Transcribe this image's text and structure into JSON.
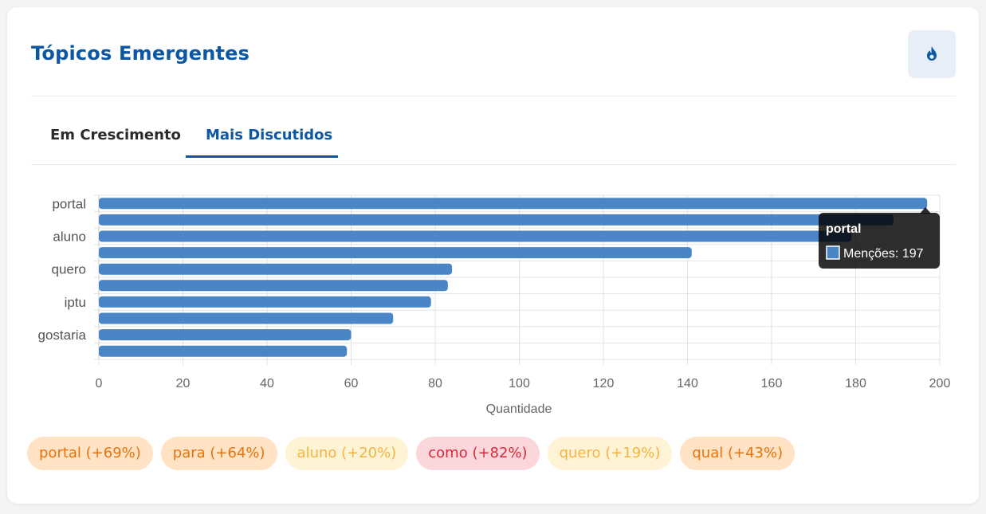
{
  "header": {
    "title": "Tópicos Emergentes",
    "icon": "fire-icon"
  },
  "tabs": [
    {
      "label": "Em Crescimento",
      "active": false
    },
    {
      "label": "Mais Discutidos",
      "active": true
    }
  ],
  "colors": {
    "accent": "#0b57a4",
    "bar": "#4a86c6"
  },
  "chart_data": {
    "type": "bar",
    "orientation": "horizontal",
    "xlabel": "Quantidade",
    "xlim": [
      0,
      200
    ],
    "xticks": [
      0,
      20,
      40,
      60,
      80,
      100,
      120,
      140,
      160,
      180,
      200
    ],
    "categories": [
      "portal",
      "",
      "aluno",
      "",
      "quero",
      "",
      "iptu",
      "",
      "gostaria",
      ""
    ],
    "values": [
      197,
      189,
      179,
      141,
      84,
      83,
      79,
      70,
      60,
      59
    ],
    "grid": true,
    "tooltip": {
      "title": "portal",
      "series_label": "Menções",
      "value": "197",
      "text": "Menções: 197"
    }
  },
  "chips": [
    {
      "label": "portal (+69%)",
      "tone": "orange"
    },
    {
      "label": "para (+64%)",
      "tone": "orange"
    },
    {
      "label": "aluno (+20%)",
      "tone": "yellow"
    },
    {
      "label": "como (+82%)",
      "tone": "red"
    },
    {
      "label": "quero (+19%)",
      "tone": "yellow"
    },
    {
      "label": "qual (+43%)",
      "tone": "orange"
    }
  ]
}
